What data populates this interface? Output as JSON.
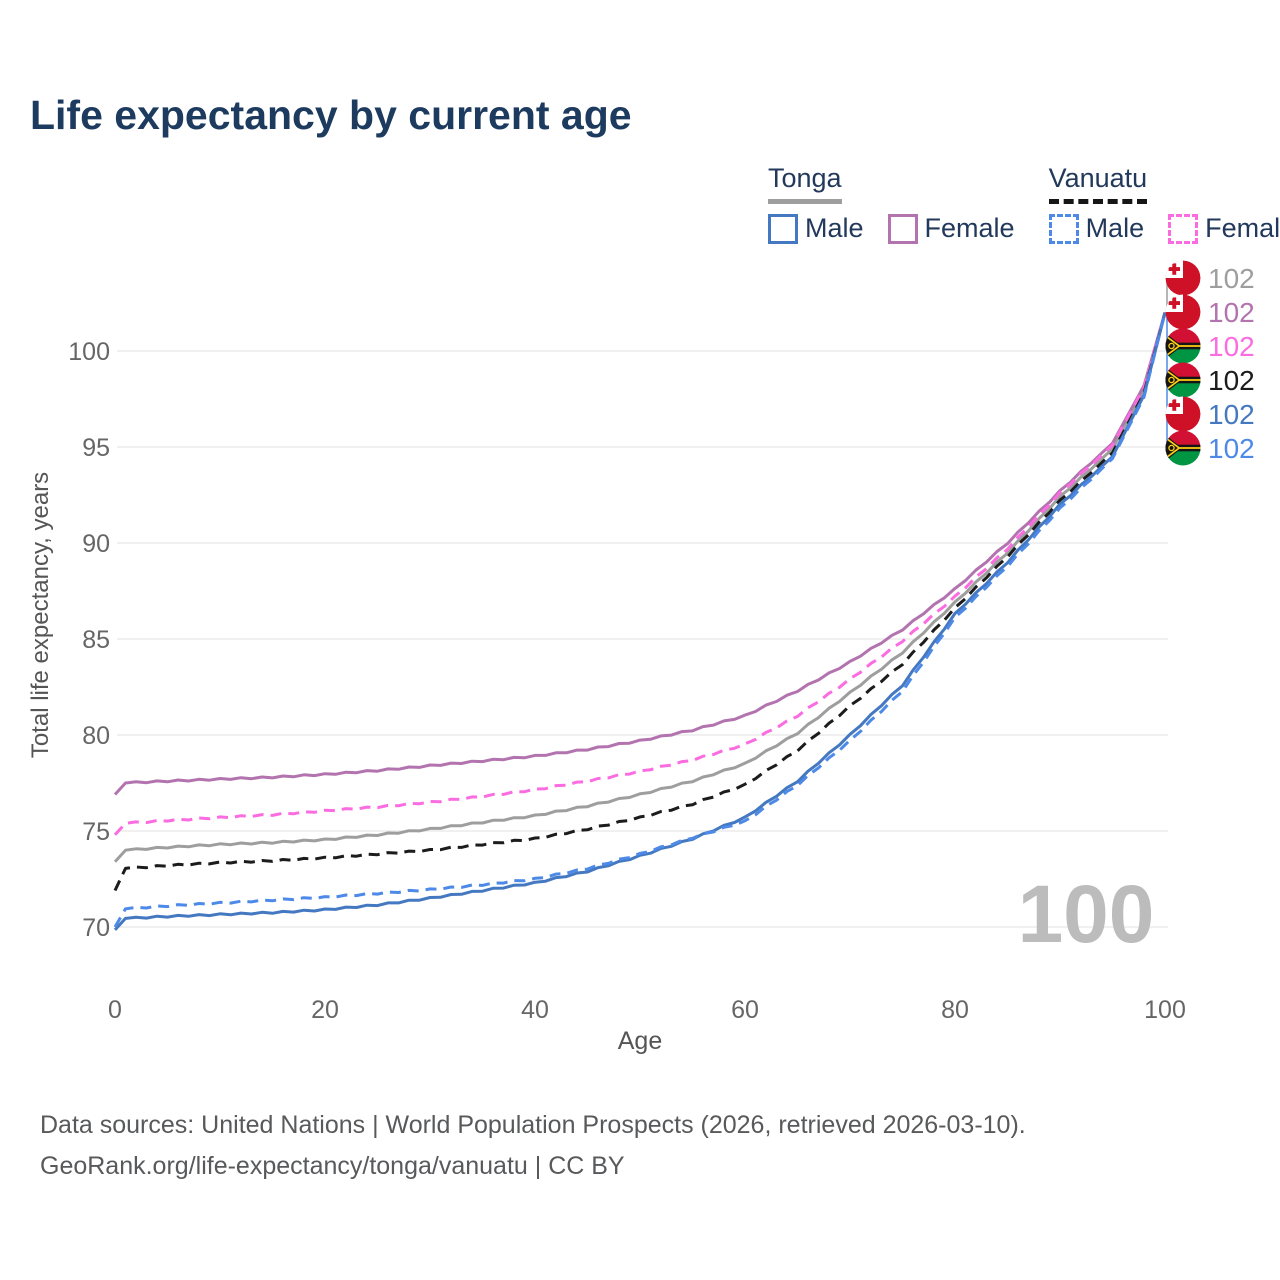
{
  "title": "Life expectancy by current age",
  "legend": {
    "groups": [
      {
        "label": "Tonga",
        "items": [
          {
            "label": "Male"
          },
          {
            "label": "Female"
          }
        ]
      },
      {
        "label": "Vanuatu",
        "items": [
          {
            "label": "Male"
          },
          {
            "label": "Female"
          }
        ]
      }
    ]
  },
  "watermark": "100",
  "footer": {
    "line1": "Data sources: United Nations | World Population Prospects (2026, retrieved 2026-03-10).",
    "line2": "GeoRank.org/life-expectancy/tonga/vanuatu | CC BY"
  },
  "chart_data": {
    "type": "line",
    "xlabel": "Age",
    "ylabel": "Total life expectancy, years",
    "xlim": [
      0,
      100
    ],
    "ylim": [
      69,
      103
    ],
    "xticks": [
      0,
      20,
      40,
      60,
      80,
      100
    ],
    "yticks": [
      70,
      75,
      80,
      85,
      90,
      95,
      100
    ],
    "grid": "horizontal",
    "legend_position": "top-right",
    "axis_text_color": "#666666",
    "grid_color": "#e7e7e7",
    "watermark_color": "#bcbcbc",
    "series": [
      {
        "name": "Tonga",
        "country": "Tonga",
        "sex": "All",
        "color": "#9e9e9e",
        "dash": "solid",
        "flag": "tonga",
        "end_label": "102",
        "end_value": 102,
        "points": [
          [
            0,
            73.4
          ],
          [
            1,
            74.0
          ],
          [
            5,
            74.15
          ],
          [
            10,
            74.3
          ],
          [
            15,
            74.4
          ],
          [
            20,
            74.55
          ],
          [
            25,
            74.8
          ],
          [
            30,
            75.1
          ],
          [
            35,
            75.45
          ],
          [
            40,
            75.8
          ],
          [
            45,
            76.3
          ],
          [
            50,
            76.9
          ],
          [
            55,
            77.6
          ],
          [
            60,
            78.5
          ],
          [
            65,
            80.1
          ],
          [
            70,
            82.2
          ],
          [
            75,
            84.3
          ],
          [
            80,
            86.9
          ],
          [
            85,
            89.5
          ],
          [
            90,
            92.4
          ],
          [
            95,
            94.9
          ],
          [
            98,
            98.0
          ],
          [
            100,
            102
          ]
        ]
      },
      {
        "name": "Tonga Female",
        "country": "Tonga",
        "sex": "Female",
        "color": "#b273ae",
        "dash": "solid",
        "flag": "tonga",
        "end_label": "102",
        "end_value": 102,
        "points": [
          [
            0,
            76.9
          ],
          [
            1,
            77.5
          ],
          [
            5,
            77.6
          ],
          [
            10,
            77.7
          ],
          [
            15,
            77.8
          ],
          [
            20,
            77.95
          ],
          [
            25,
            78.15
          ],
          [
            30,
            78.4
          ],
          [
            35,
            78.65
          ],
          [
            40,
            78.9
          ],
          [
            45,
            79.25
          ],
          [
            50,
            79.7
          ],
          [
            55,
            80.25
          ],
          [
            60,
            81.0
          ],
          [
            65,
            82.3
          ],
          [
            70,
            83.8
          ],
          [
            75,
            85.5
          ],
          [
            80,
            87.6
          ],
          [
            85,
            90.0
          ],
          [
            90,
            92.7
          ],
          [
            95,
            95.2
          ],
          [
            98,
            98.2
          ],
          [
            100,
            102
          ]
        ]
      },
      {
        "name": "Vanuatu Female",
        "country": "Vanuatu",
        "sex": "Female",
        "color": "#fb6ce1",
        "dash": "dashed",
        "flag": "vanuatu",
        "end_label": "102",
        "end_value": 102,
        "points": [
          [
            0,
            74.8
          ],
          [
            1,
            75.4
          ],
          [
            5,
            75.55
          ],
          [
            10,
            75.7
          ],
          [
            15,
            75.85
          ],
          [
            20,
            76.05
          ],
          [
            25,
            76.25
          ],
          [
            30,
            76.5
          ],
          [
            35,
            76.8
          ],
          [
            40,
            77.15
          ],
          [
            45,
            77.6
          ],
          [
            50,
            78.1
          ],
          [
            55,
            78.7
          ],
          [
            60,
            79.5
          ],
          [
            65,
            81.0
          ],
          [
            70,
            82.9
          ],
          [
            75,
            84.9
          ],
          [
            80,
            87.2
          ],
          [
            85,
            89.7
          ],
          [
            90,
            92.6
          ],
          [
            95,
            95.1
          ],
          [
            98,
            98.1
          ],
          [
            100,
            102
          ]
        ]
      },
      {
        "name": "Vanuatu",
        "country": "Vanuatu",
        "sex": "All",
        "color": "#1c1c1c",
        "dash": "dashed",
        "flag": "vanuatu",
        "end_label": "102",
        "end_value": 102,
        "points": [
          [
            0,
            71.9
          ],
          [
            1,
            73.05
          ],
          [
            5,
            73.2
          ],
          [
            10,
            73.35
          ],
          [
            15,
            73.45
          ],
          [
            20,
            73.6
          ],
          [
            25,
            73.8
          ],
          [
            30,
            74.0
          ],
          [
            35,
            74.3
          ],
          [
            40,
            74.6
          ],
          [
            45,
            75.1
          ],
          [
            50,
            75.7
          ],
          [
            55,
            76.4
          ],
          [
            60,
            77.4
          ],
          [
            65,
            79.2
          ],
          [
            70,
            81.5
          ],
          [
            75,
            83.7
          ],
          [
            80,
            86.6
          ],
          [
            85,
            89.3
          ],
          [
            90,
            92.2
          ],
          [
            95,
            94.7
          ],
          [
            98,
            97.8
          ],
          [
            100,
            102
          ]
        ]
      },
      {
        "name": "Tonga Male",
        "country": "Tonga",
        "sex": "Male",
        "color": "#4478c0",
        "dash": "solid",
        "flag": "tonga",
        "end_label": "102",
        "end_value": 102,
        "points": [
          [
            0,
            69.85
          ],
          [
            1,
            70.45
          ],
          [
            5,
            70.55
          ],
          [
            10,
            70.65
          ],
          [
            15,
            70.75
          ],
          [
            20,
            70.9
          ],
          [
            25,
            71.15
          ],
          [
            30,
            71.5
          ],
          [
            35,
            71.9
          ],
          [
            40,
            72.3
          ],
          [
            45,
            72.9
          ],
          [
            50,
            73.7
          ],
          [
            55,
            74.6
          ],
          [
            60,
            75.7
          ],
          [
            65,
            77.6
          ],
          [
            70,
            80.0
          ],
          [
            75,
            82.6
          ],
          [
            80,
            86.3
          ],
          [
            85,
            89.0
          ],
          [
            90,
            92.0
          ],
          [
            95,
            94.5
          ],
          [
            98,
            97.7
          ],
          [
            100,
            102
          ]
        ]
      },
      {
        "name": "Vanuatu Male",
        "country": "Vanuatu",
        "sex": "Male",
        "color": "#4d8ae8",
        "dash": "dashed",
        "flag": "vanuatu",
        "end_label": "102",
        "end_value": 102,
        "points": [
          [
            0,
            70.0
          ],
          [
            1,
            70.95
          ],
          [
            5,
            71.1
          ],
          [
            10,
            71.25
          ],
          [
            15,
            71.4
          ],
          [
            20,
            71.55
          ],
          [
            25,
            71.75
          ],
          [
            30,
            71.95
          ],
          [
            35,
            72.2
          ],
          [
            40,
            72.5
          ],
          [
            45,
            73.05
          ],
          [
            50,
            73.8
          ],
          [
            55,
            74.65
          ],
          [
            60,
            75.5
          ],
          [
            65,
            77.4
          ],
          [
            70,
            79.7
          ],
          [
            75,
            82.3
          ],
          [
            80,
            86.1
          ],
          [
            85,
            88.8
          ],
          [
            90,
            91.8
          ],
          [
            95,
            94.4
          ],
          [
            98,
            97.6
          ],
          [
            100,
            102
          ]
        ]
      }
    ]
  }
}
